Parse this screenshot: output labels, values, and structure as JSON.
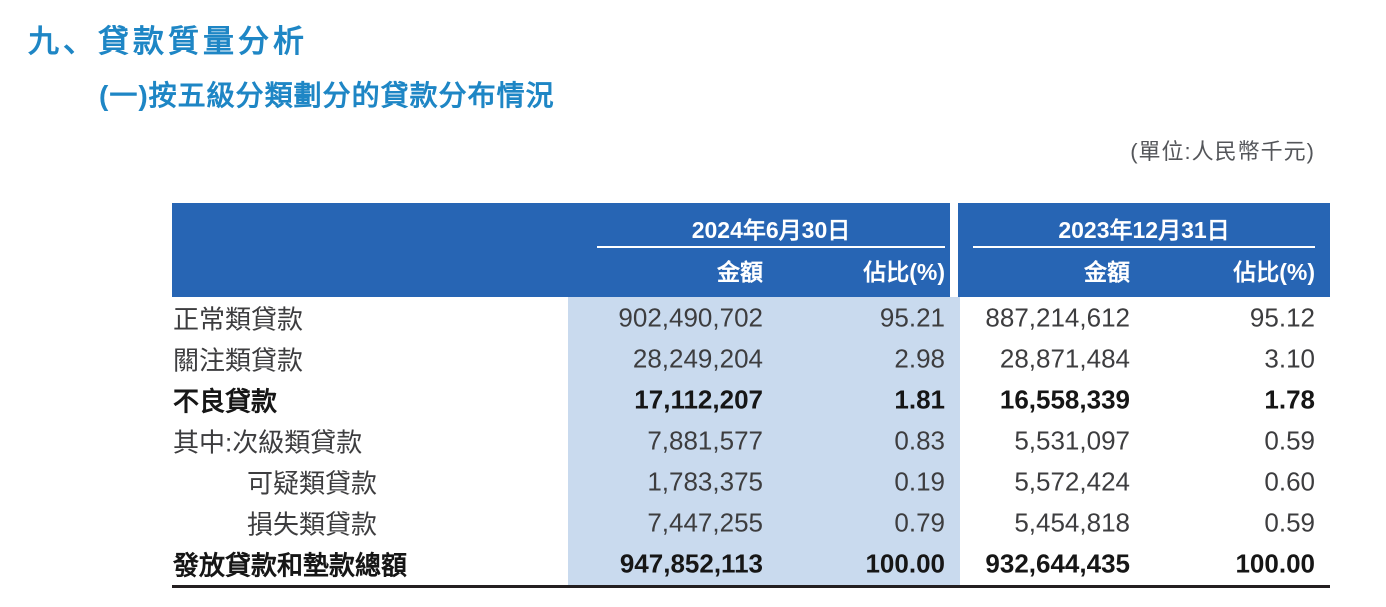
{
  "page": {
    "title": "九、貸款質量分析",
    "subtitle": "(一)按五級分類劃分的貸款分布情況",
    "unit_note": "(單位:人民幣千元)"
  },
  "table": {
    "col_groups": [
      {
        "date": "2024年6月30日",
        "amount_label": "金額",
        "pct_label": "佔比(%)"
      },
      {
        "date": "2023年12月31日",
        "amount_label": "金額",
        "pct_label": "佔比(%)"
      }
    ],
    "rows": [
      {
        "label": "正常類貸款",
        "amount_2024": "902,490,702",
        "pct_2024": "95.21",
        "amount_2023": "887,214,612",
        "pct_2023": "95.12"
      },
      {
        "label": "關注類貸款",
        "amount_2024": "28,249,204",
        "pct_2024": "2.98",
        "amount_2023": "28,871,484",
        "pct_2023": "3.10"
      },
      {
        "label": "不良貸款",
        "amount_2024": "17,112,207",
        "pct_2024": "1.81",
        "amount_2023": "16,558,339",
        "pct_2023": "1.78"
      },
      {
        "label": "其中:次級類貸款",
        "amount_2024": "7,881,577",
        "pct_2024": "0.83",
        "amount_2023": "5,531,097",
        "pct_2023": "0.59"
      },
      {
        "label": "可疑類貸款",
        "amount_2024": "1,783,375",
        "pct_2024": "0.19",
        "amount_2023": "5,572,424",
        "pct_2023": "0.60"
      },
      {
        "label": "損失類貸款",
        "amount_2024": "7,447,255",
        "pct_2024": "0.79",
        "amount_2023": "5,454,818",
        "pct_2023": "0.59"
      },
      {
        "label": "發放貸款和墊款總額",
        "amount_2024": "947,852,113",
        "pct_2024": "100.00",
        "amount_2023": "932,644,435",
        "pct_2023": "100.00"
      }
    ]
  },
  "colors": {
    "title_blue": "#1e86c5",
    "header_blue": "#2765b4",
    "band_blue": "#c9daee",
    "bottom_rule": "#231f20"
  }
}
